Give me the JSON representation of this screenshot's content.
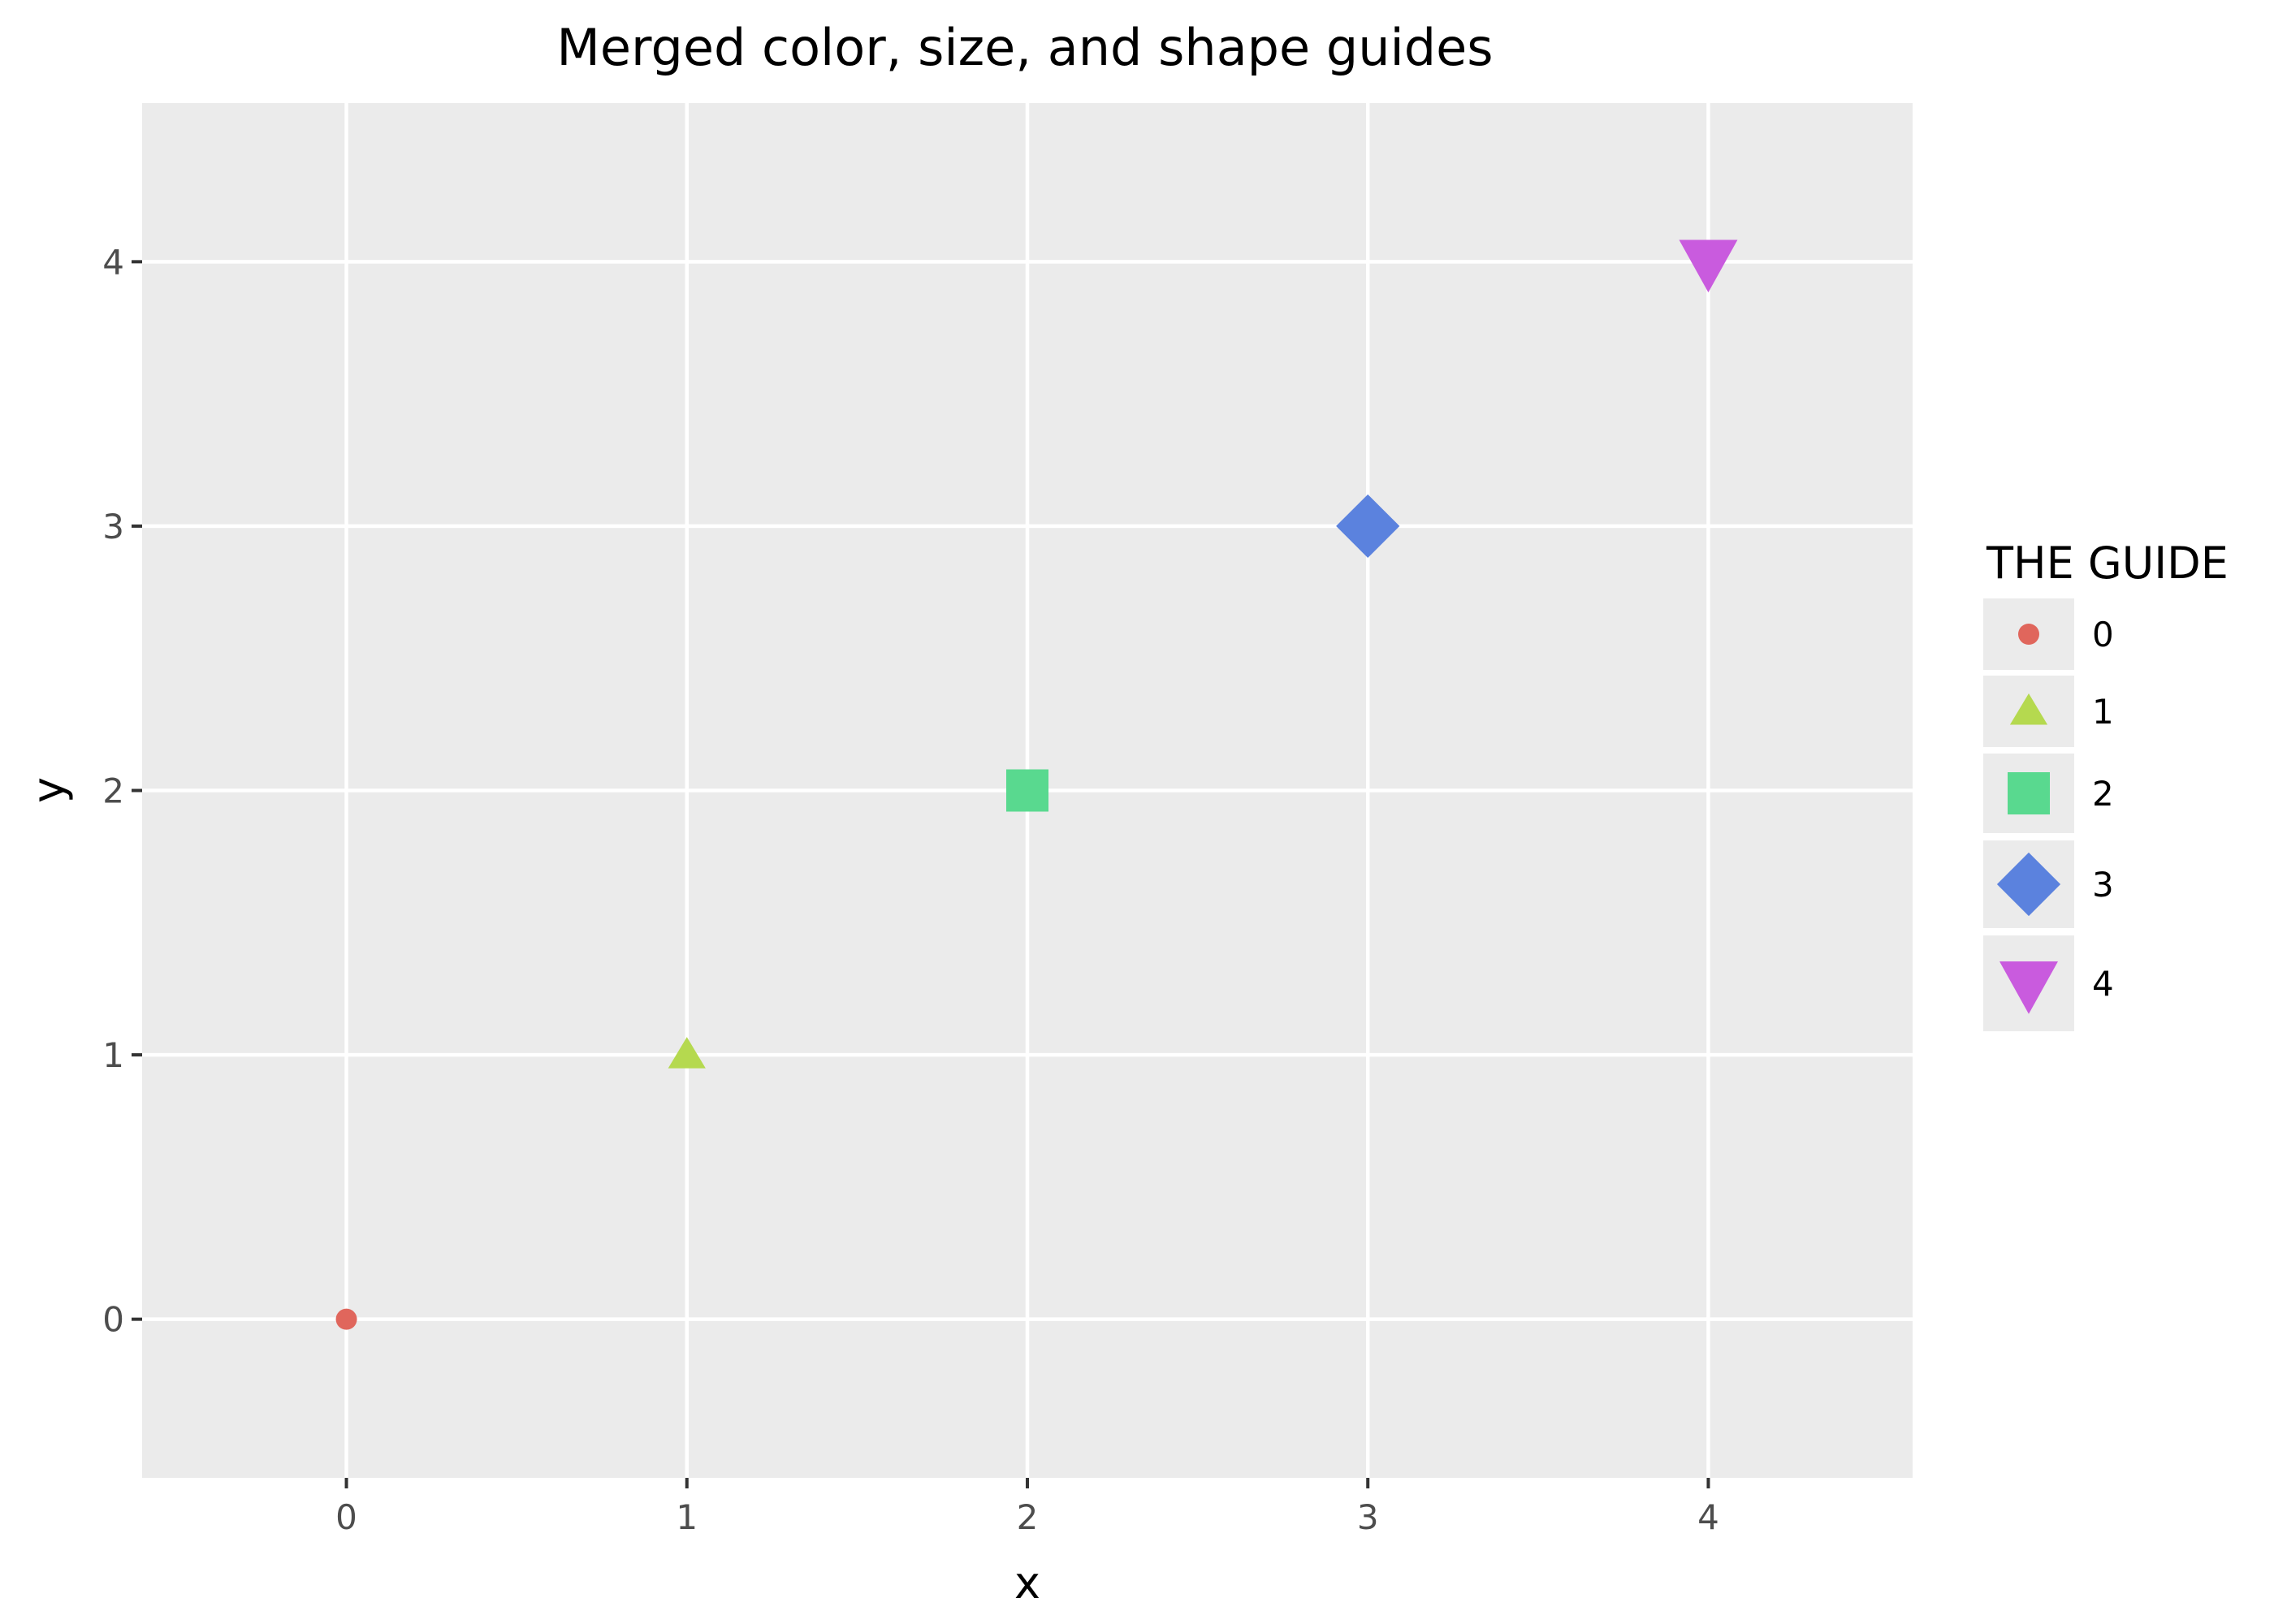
{
  "chart_data": {
    "type": "scatter",
    "title": "Merged color, size, and shape guides",
    "xlabel": "x",
    "ylabel": "y",
    "xlim": [
      -0.6,
      4.6
    ],
    "ylim": [
      -0.6,
      4.6
    ],
    "x_ticks": [
      0,
      1,
      2,
      3,
      4
    ],
    "y_ticks": [
      0,
      1,
      2,
      3,
      4
    ],
    "grid": true,
    "legend": {
      "title": "THE GUIDE",
      "placement": "right"
    },
    "points": [
      {
        "x": 0,
        "y": 0,
        "group": "0",
        "color": "#E0665C",
        "shape": "circle",
        "size": 1
      },
      {
        "x": 1,
        "y": 1,
        "group": "1",
        "color": "#B5D94F",
        "shape": "triangle-up",
        "size": 2
      },
      {
        "x": 2,
        "y": 2,
        "group": "2",
        "color": "#59D98F",
        "shape": "square",
        "size": 3
      },
      {
        "x": 3,
        "y": 3,
        "group": "3",
        "color": "#5B82DE",
        "shape": "diamond",
        "size": 4
      },
      {
        "x": 4,
        "y": 4,
        "group": "4",
        "color": "#C95BDE",
        "shape": "triangle-down",
        "size": 5
      }
    ],
    "colors": {
      "panel_background": "#EBEBEB",
      "grid": "#FFFFFF",
      "tick": "#333333"
    }
  }
}
